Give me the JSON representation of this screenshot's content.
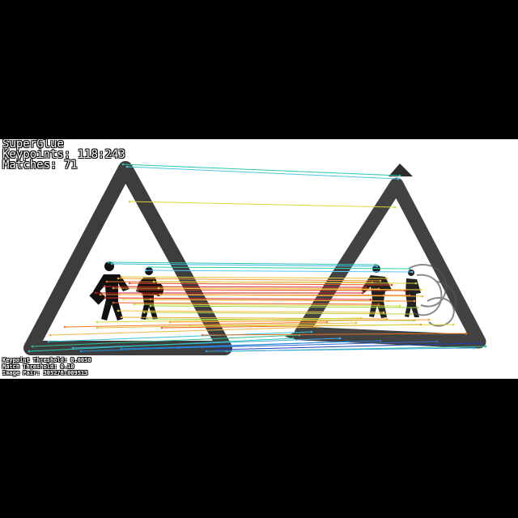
{
  "header": {
    "method": "SuperGlue",
    "keypoints": "Keypoints: 118:243",
    "matches": "Matches: 71"
  },
  "footer": {
    "keypoint_threshold": "Keypoint Threshold: 0.0050",
    "match_threshold": "Match Threshold: 0.10",
    "image_pair": "Image Pair: 305278:009513"
  },
  "colors": {
    "background": "#000000",
    "panel": "#ffffff",
    "sign_border": "#3a3a3a",
    "text": "#ffffff"
  }
}
